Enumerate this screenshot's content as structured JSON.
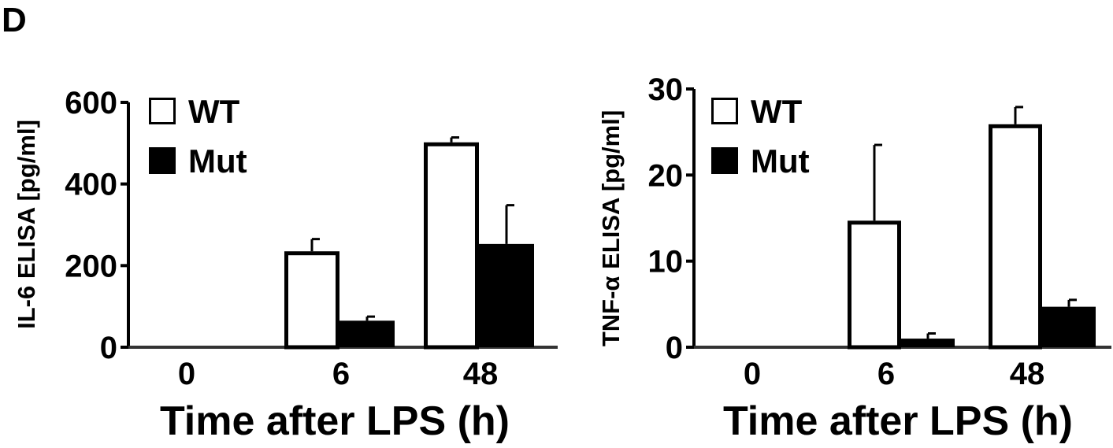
{
  "panel_label": "D",
  "chart_data": [
    {
      "type": "bar",
      "title": "",
      "ylabel": "IL-6  ELISA  [pg/ml]",
      "xlabel": "Time after LPS (h)",
      "categories": [
        "0",
        "6",
        "48"
      ],
      "ylim": [
        0,
        600
      ],
      "yticks": [
        0,
        200,
        400,
        600
      ],
      "grid": false,
      "legend": "top-left",
      "series": [
        {
          "name": "WT",
          "color": "#ffffff",
          "values": [
            0,
            235,
            502
          ],
          "errors": [
            0,
            30,
            12
          ]
        },
        {
          "name": "Mut",
          "color": "#000000",
          "values": [
            0,
            65,
            253
          ],
          "errors": [
            0,
            10,
            95
          ]
        }
      ]
    },
    {
      "type": "bar",
      "title": "",
      "ylabel": "TNF-α ELISA  [pg/ml]",
      "xlabel": "Time after LPS (h)",
      "categories": [
        "0",
        "6",
        "48"
      ],
      "ylim": [
        0,
        30
      ],
      "yticks": [
        0,
        10,
        20,
        30
      ],
      "grid": false,
      "legend": "top-left",
      "series": [
        {
          "name": "WT",
          "color": "#ffffff",
          "values": [
            0,
            14.7,
            25.9
          ],
          "errors": [
            0,
            8.8,
            2
          ]
        },
        {
          "name": "Mut",
          "color": "#000000",
          "values": [
            0,
            1.0,
            4.7
          ],
          "errors": [
            0,
            0.6,
            0.8
          ]
        }
      ]
    }
  ]
}
